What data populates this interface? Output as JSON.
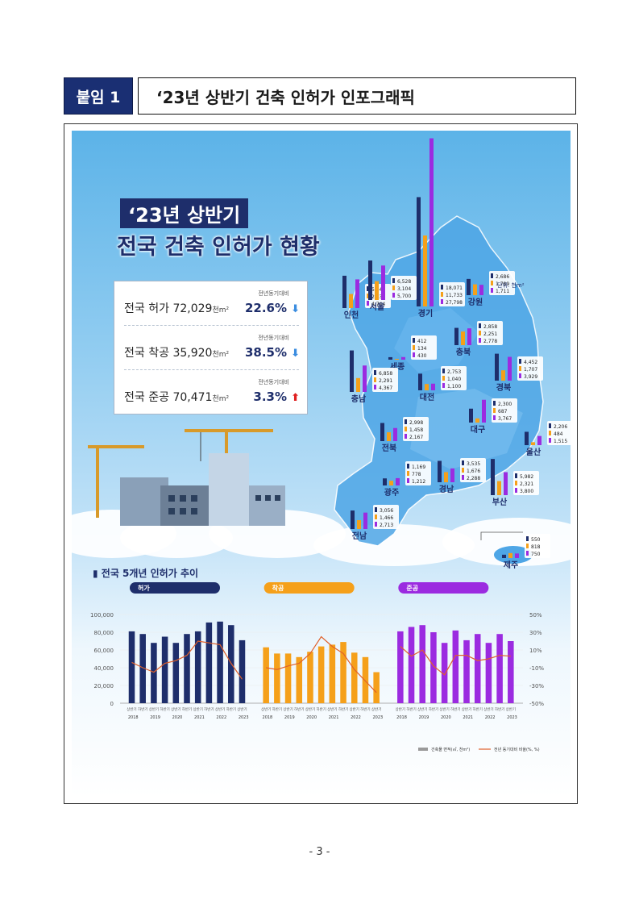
{
  "header": {
    "tag": "붙임 1",
    "title": "‘23년 상반기 건축 인허가 인포그래픽"
  },
  "infographic": {
    "title_line1": "‘23년 상반기",
    "title_line2": "전국 건축 인허가 현황",
    "unit_note": "단위: 천m²",
    "stats": [
      {
        "label": "전국 허가",
        "value": "72,029",
        "unit": "천m²",
        "compare_label": "전년동기대비",
        "change": "22.6%",
        "direction": "down"
      },
      {
        "label": "전국 착공",
        "value": "35,920",
        "unit": "천m²",
        "compare_label": "전년동기대비",
        "change": "38.5%",
        "direction": "down"
      },
      {
        "label": "전국 준공",
        "value": "70,471",
        "unit": "천m²",
        "compare_label": "전년동기대비",
        "change": "3.3%",
        "direction": "up"
      }
    ],
    "colors": {
      "permit": "#1e2e6b",
      "start": "#f5a01a",
      "complete": "#9b2be0",
      "up": "#e02020",
      "down": "#3b8de0",
      "line": "#e0602a"
    }
  },
  "chart_data": [
    {
      "type": "bar",
      "title": "",
      "categories": [
        "인천",
        "서울",
        "경기",
        "강원",
        "세종",
        "충북",
        "경북",
        "충남",
        "대전",
        "대구",
        "전북",
        "울산",
        "광주",
        "경남",
        "부산",
        "전남",
        "제주"
      ],
      "series": [
        {
          "name": "허가",
          "values": [
            5343,
            6528,
            18071,
            2686,
            412,
            2858,
            4452,
            6858,
            2753,
            2300,
            2998,
            2206,
            1169,
            3535,
            5982,
            3056,
            550
          ]
        },
        {
          "name": "착공",
          "values": [
            2330,
            3104,
            11733,
            1789,
            134,
            2251,
            1707,
            2291,
            1040,
            687,
            1458,
            484,
            778,
            1676,
            2321,
            1466,
            818
          ]
        },
        {
          "name": "준공",
          "values": [
            4744,
            5700,
            27798,
            1711,
            430,
            2778,
            3929,
            4367,
            1100,
            3767,
            2167,
            1515,
            1212,
            2288,
            3800,
            2713,
            750
          ]
        }
      ]
    },
    {
      "type": "bar",
      "title": "전국 5개년 인허가 추이",
      "groups": [
        "허가",
        "착공",
        "준공"
      ],
      "period_labels": [
        "상반기",
        "하반기",
        "상반기",
        "하반기",
        "상반기",
        "하반기",
        "상반기",
        "하반기",
        "상반기",
        "하반기",
        "상반기"
      ],
      "year_labels": [
        "2018",
        "2019",
        "2020",
        "2021",
        "2022",
        "2023"
      ],
      "series": [
        {
          "name": "허가",
          "values": [
            81000,
            78000,
            68000,
            75000,
            68000,
            78000,
            81000,
            91000,
            92000,
            88000,
            71000
          ],
          "yoy": [
            -4,
            -10,
            -15,
            -5,
            -2,
            4,
            20,
            18,
            16,
            -5,
            -23
          ]
        },
        {
          "name": "착공",
          "values": [
            63000,
            56000,
            56000,
            52000,
            58000,
            64000,
            66000,
            69000,
            57000,
            52000,
            35000
          ],
          "yoy": [
            -10,
            -12,
            -8,
            -5,
            6,
            25,
            14,
            6,
            -12,
            -25,
            -38
          ]
        },
        {
          "name": "준공",
          "values": [
            81000,
            86000,
            88000,
            80000,
            68000,
            82000,
            71000,
            78000,
            68000,
            78000,
            70000
          ],
          "yoy": [
            14,
            3,
            10,
            -8,
            -18,
            4,
            4,
            -2,
            0,
            4,
            3
          ]
        }
      ],
      "ylabel_left_ticks": [
        "100,000",
        "80,000",
        "60,000",
        "40,000",
        "20,000",
        "0"
      ],
      "ylabel_right_ticks": [
        "50%",
        "30%",
        "10%",
        "-10%",
        "-30%",
        "-50%"
      ],
      "ylim": [
        0,
        100000
      ],
      "ylim_right": [
        -50,
        50
      ],
      "legend": [
        "건축물 면적(㎡, 천m²)",
        "전년 동기대비 비율(%, %)"
      ]
    }
  ],
  "footer": {
    "page": "- 3 -"
  }
}
